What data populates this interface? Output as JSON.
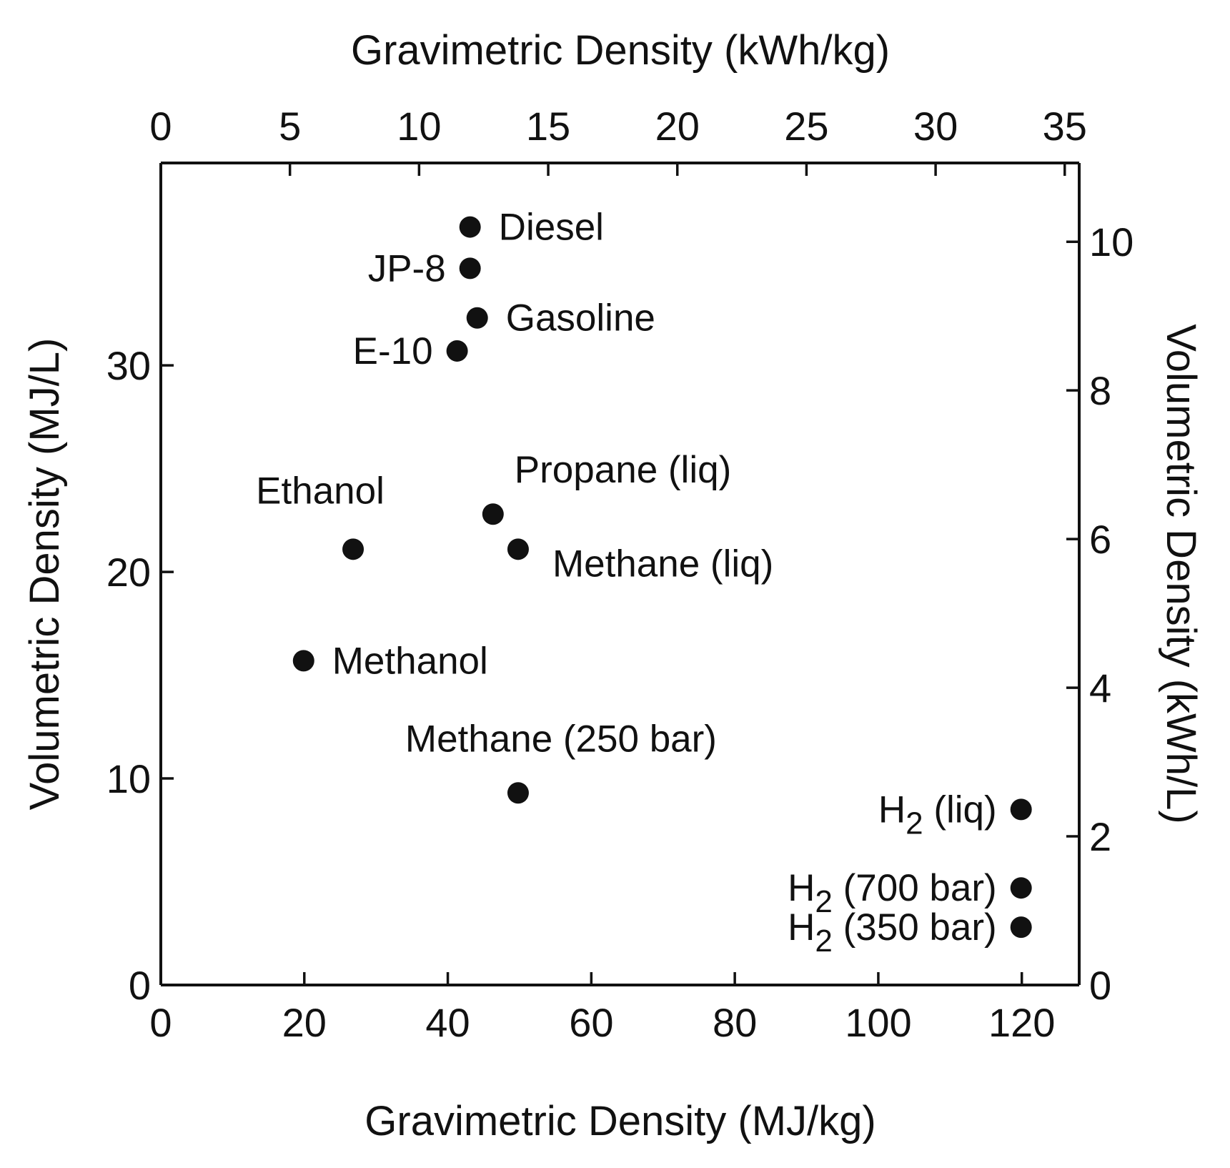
{
  "chart_data": {
    "type": "scatter",
    "grid": false,
    "x_axis_bottom": {
      "label": "Gravimetric Density (MJ/kg)",
      "range": [
        0,
        128
      ],
      "ticks": [
        0,
        20,
        40,
        60,
        80,
        100,
        120
      ]
    },
    "x_axis_top": {
      "label": "Gravimetric Density (kWh/kg)",
      "range": [
        0,
        35.56
      ],
      "ticks": [
        0,
        5,
        10,
        15,
        20,
        25,
        30,
        35
      ]
    },
    "y_axis_left": {
      "label": "Volumetric Density (MJ/L)",
      "range": [
        0,
        39.8
      ],
      "ticks": [
        0,
        10,
        20,
        30
      ]
    },
    "y_axis_right": {
      "label": "Volumetric Density (kWh/L)",
      "range": [
        0,
        11.06
      ],
      "ticks": [
        0,
        2,
        4,
        6,
        8,
        10
      ]
    },
    "points": [
      {
        "label": "Diesel",
        "subscript": "",
        "suffix": "",
        "x": 43.1,
        "y": 36.7,
        "anchor": "start"
      },
      {
        "label": "JP-8",
        "subscript": "",
        "suffix": "",
        "x": 43.1,
        "y": 34.7,
        "anchor": "end"
      },
      {
        "label": "Gasoline",
        "subscript": "",
        "suffix": "",
        "x": 44.1,
        "y": 32.3,
        "anchor": "start"
      },
      {
        "label": "E-10",
        "subscript": "",
        "suffix": "",
        "x": 41.3,
        "y": 30.7,
        "anchor": "end"
      },
      {
        "label": "Propane (liq)",
        "subscript": "",
        "suffix": "",
        "x": 46.3,
        "y": 22.8,
        "anchor": "start"
      },
      {
        "label": "Methane (liq)",
        "subscript": "",
        "suffix": "",
        "x": 49.8,
        "y": 21.1,
        "anchor": "start"
      },
      {
        "label": "Ethanol",
        "subscript": "",
        "suffix": "",
        "x": 26.8,
        "y": 21.1,
        "anchor": "middle"
      },
      {
        "label": "Methanol",
        "subscript": "",
        "suffix": "",
        "x": 19.9,
        "y": 15.7,
        "anchor": "start"
      },
      {
        "label": "Methane (250 bar)",
        "subscript": "",
        "suffix": "",
        "x": 49.8,
        "y": 9.3,
        "anchor": "middle"
      },
      {
        "label": "H",
        "subscript": "2",
        "suffix": " (liq)",
        "x": 119.9,
        "y": 8.5,
        "anchor": "end"
      },
      {
        "label": "H",
        "subscript": "2",
        "suffix": " (700 bar)",
        "x": 119.9,
        "y": 4.7,
        "anchor": "end"
      },
      {
        "label": "H",
        "subscript": "2",
        "suffix": " (350 bar)",
        "x": 119.9,
        "y": 2.8,
        "anchor": "end"
      }
    ]
  }
}
